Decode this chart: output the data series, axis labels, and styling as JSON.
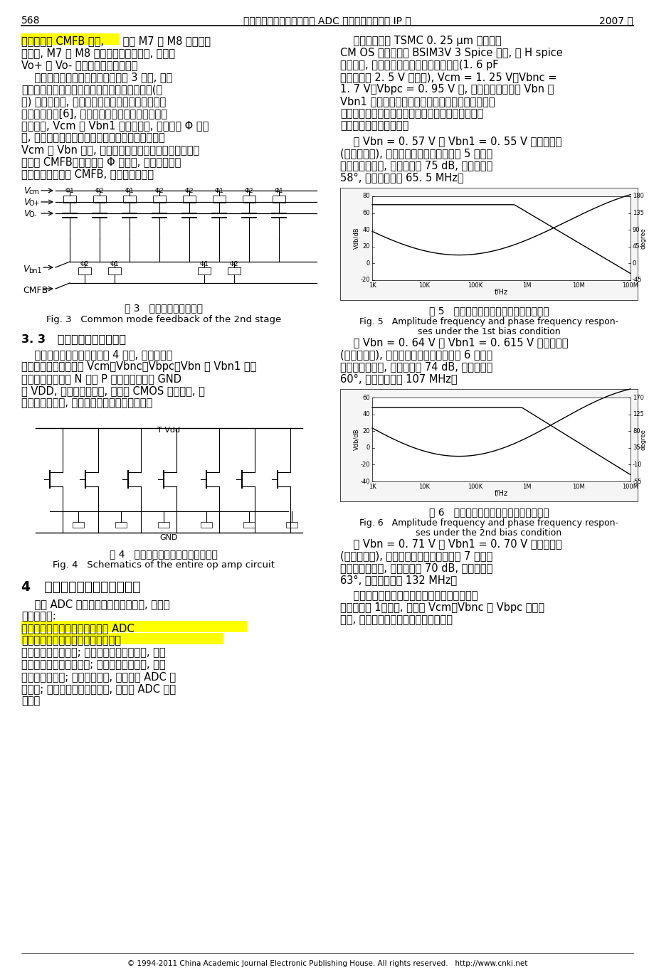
{
  "page_number": "568",
  "header_title": "陈珍海等：一种基于嵌入式 ADC 应用的运算放大器 IP 核",
  "year": "2007 年",
  "bg_color": "#ffffff",
  "highlight_yellow": "#FFFF00",
  "fig3_caption_zh": "图 3   第二级共模反馈结构",
  "fig3_caption_en": "Fig. 3   Common mode feedback of the 2nd stage",
  "section33_title": "3. 3   运算放大器电路的实现",
  "fig4_caption_zh": "图 4   整个运算放大器模块的电路实现",
  "fig4_caption_en": "Fig. 4   Schematics of the entire op amp circuit",
  "section4_title": "4   运算放大器电路仿真及分析",
  "fig5_caption_zh": "图 5   第一组偏置条件下的幅频和相频响应",
  "fig5_caption_en1": "Fig. 5   Amplitude frequency and phase frequency respon-",
  "fig5_caption_en2": "ses under the 1st bias condition",
  "fig6_caption_zh": "图 6   第二组偏置条件下的幅频和相频响应",
  "fig6_caption_en1": "Fig. 6   Amplitude frequency and phase frequency respon-",
  "fig6_caption_en2": "ses under the 2nd bias condition",
  "footer": "© 1994-2011 China Academic Journal Electronic Publishing House. All rights reserved.   http://www.cnki.net",
  "left_lines": [
    "压降低, M7 和 M8 支路的电流随之增大, 最终使",
    "Vo+ 和 Vo- 的输出共模电平降低。",
    "    运放第二级共模反馈电路结构如图 3 所示, 电路",
    "采用开关电容结构。由于反馈电路采用无源元件(电",
    "容) 和开关组成, 运算放大器的输出电压不受共模检",
    "测电路的限制[6], 并且反馈电路不消耗静态直流功",
    "耗。其中, Vcm 和 Vbn1 为偏置电压, 当时钟为 Φ 有效",
    "时, 左边两个电容组成的左半支路的电容两端分别接",
    "Vcm 和 Vbn 复位, 右半支路的两个电容工作产生共模反",
    "馈电平 CMFB。当时钟为 Φ 有效时, 左半支路工作",
    "产生共模反馈电平 CMFB, 右半支路复位。"
  ],
  "sec33_lines": [
    "    整个运算放大器的电路如图 4 所示, 整个电路完",
    "全对称。其中偏置电压 Vcm、Vbnc、Vbpc、Vbn 和 Vbn1 由外",
    "部电路产生。所有 N 管和 P 管的衬底分别接 GND",
    "和 VDD, 开关电容电路中, 开关由 CMOS 开关组成, 从",
    "而降低导通电阻, 减少共模反馈信号传输时间。"
  ],
  "s4_lines": [
    "    作为 ADC 的采样和保持运算放大器, 应该具",
    "有以下特性:"
  ],
  "s4_rest_lines": [
    "可以使运放保持稳定; 足够宽的单位增益带宽, 从而",
    "使运放的建立时间尽量小; 足够大的转换速率, 以驱",
    "动大的电容负载; 尽量低的功耗, 从而降低 ADC 总",
    "的功耗; 尽量小的等效输入噪声, 以提高 ADC 的分",
    "辨率。"
  ],
  "right_lines1": [
    "    整个电路采用 TSMC 0. 25 μm 标准数字",
    "CM OS 工艺。基于 BSIM3V 3 Spice 模型, 用 H spice",
    "进行仿真, 在相同的工作负载和电源电压下(1. 6 pF",
    "电容负载和 2. 5 V 单电源), Vcm = 1. 25 V、Vbnc =",
    "1. 7 V、Vbpc = 0. 95 V 时, 分别对电路工作于 Vbn 和",
    "Vbn1 在几组不同偏置电压时的开环电压增益、相位",
    "裕度、单位增益带宽、转换速率、等效输入噪声等主",
    "要电路参数进行了模拟。"
  ],
  "bias1_lines": [
    "    在 Vbn = 0. 57 V 和 Vbn1 = 0. 55 V 偏置条件下",
    "(第一组偏置), 电路的幅频和相频响应如图 5 所示。",
    "从图中可以看出, 低频增益为 75 dB, 相位裕度约",
    "58°, 单位增益带宽 65. 5 MHz。"
  ],
  "bias2_lines": [
    "    在 Vbn = 0. 64 V 和 Vbn1 = 0. 615 V 偏置条件下",
    "(第二组偏置), 电路的幅频和相频响应如图 6 所示。",
    "从图中可以看出, 低频增益为 74 dB, 相位裕度约",
    "60°, 单位增益带宽 107 MHz。"
  ],
  "bias3_lines": [
    "    在 Vbn = 0. 71 V 和 Vbn1 = 0. 70 V 偏置条件下",
    "(第三组偏置), 电路的幅频和相频响应如图 7 所示。",
    "从图中可以看出, 低频增益为 70 dB, 相位裕度约",
    "63°, 单位增益带宽 132 MHz。"
  ],
  "final_lines": [
    "    运算放大器电路在几组不同偏置条件下的仿真",
    "结果列于表 1。另外, 电路在 Vcm、Vbnc 和 Vbpc 偏置改",
    "变后, 还可以获得更多其他的性能组合。"
  ]
}
